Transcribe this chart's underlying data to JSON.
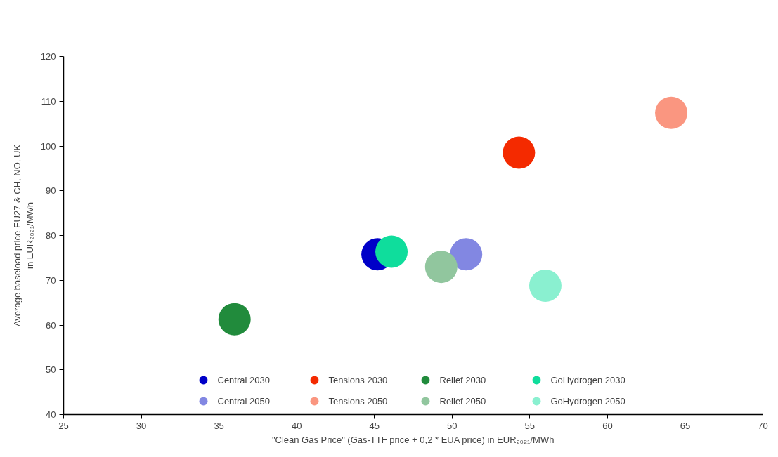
{
  "chart_data": {
    "type": "scatter",
    "xlabel": "\"Clean Gas Price\" (Gas-TTF price + 0,2 * EUA price) in EUR₂₀₂₁/MWh",
    "ylabel": "Average baseload price EU27 & CH, NO, UK\nin EUR₂₀₂₁/MWh",
    "xlim": [
      25,
      70
    ],
    "xticks": [
      25,
      30,
      35,
      40,
      45,
      50,
      55,
      60,
      65,
      70
    ],
    "ylim": [
      40,
      120
    ],
    "yticks": [
      40,
      50,
      60,
      70,
      80,
      90,
      100,
      110,
      120
    ],
    "grid": false,
    "legend": "bottom",
    "marker": "circle",
    "series": [
      {
        "name": "Central 2030",
        "color": "#0000c8",
        "x": [
          45.2
        ],
        "values": [
          75.8
        ]
      },
      {
        "name": "Central 2050",
        "color": "#8287e2",
        "x": [
          50.9
        ],
        "values": [
          75.8
        ]
      },
      {
        "name": "Tensions 2030",
        "color": "#f42a00",
        "x": [
          54.3
        ],
        "values": [
          98.5
        ]
      },
      {
        "name": "Tensions 2050",
        "color": "#fa9680",
        "x": [
          64.1
        ],
        "values": [
          107.4
        ]
      },
      {
        "name": "Relief 2030",
        "color": "#218b3c",
        "x": [
          36.0
        ],
        "values": [
          61.3
        ]
      },
      {
        "name": "Relief 2050",
        "color": "#91c69e",
        "x": [
          49.3
        ],
        "values": [
          73.0
        ]
      },
      {
        "name": "GoHydrogen 2030",
        "color": "#0fdd9c",
        "x": [
          46.1
        ],
        "values": [
          76.4
        ]
      },
      {
        "name": "GoHydrogen 2050",
        "color": "#8af0d0",
        "x": [
          56.0
        ],
        "values": [
          68.8
        ]
      }
    ]
  }
}
